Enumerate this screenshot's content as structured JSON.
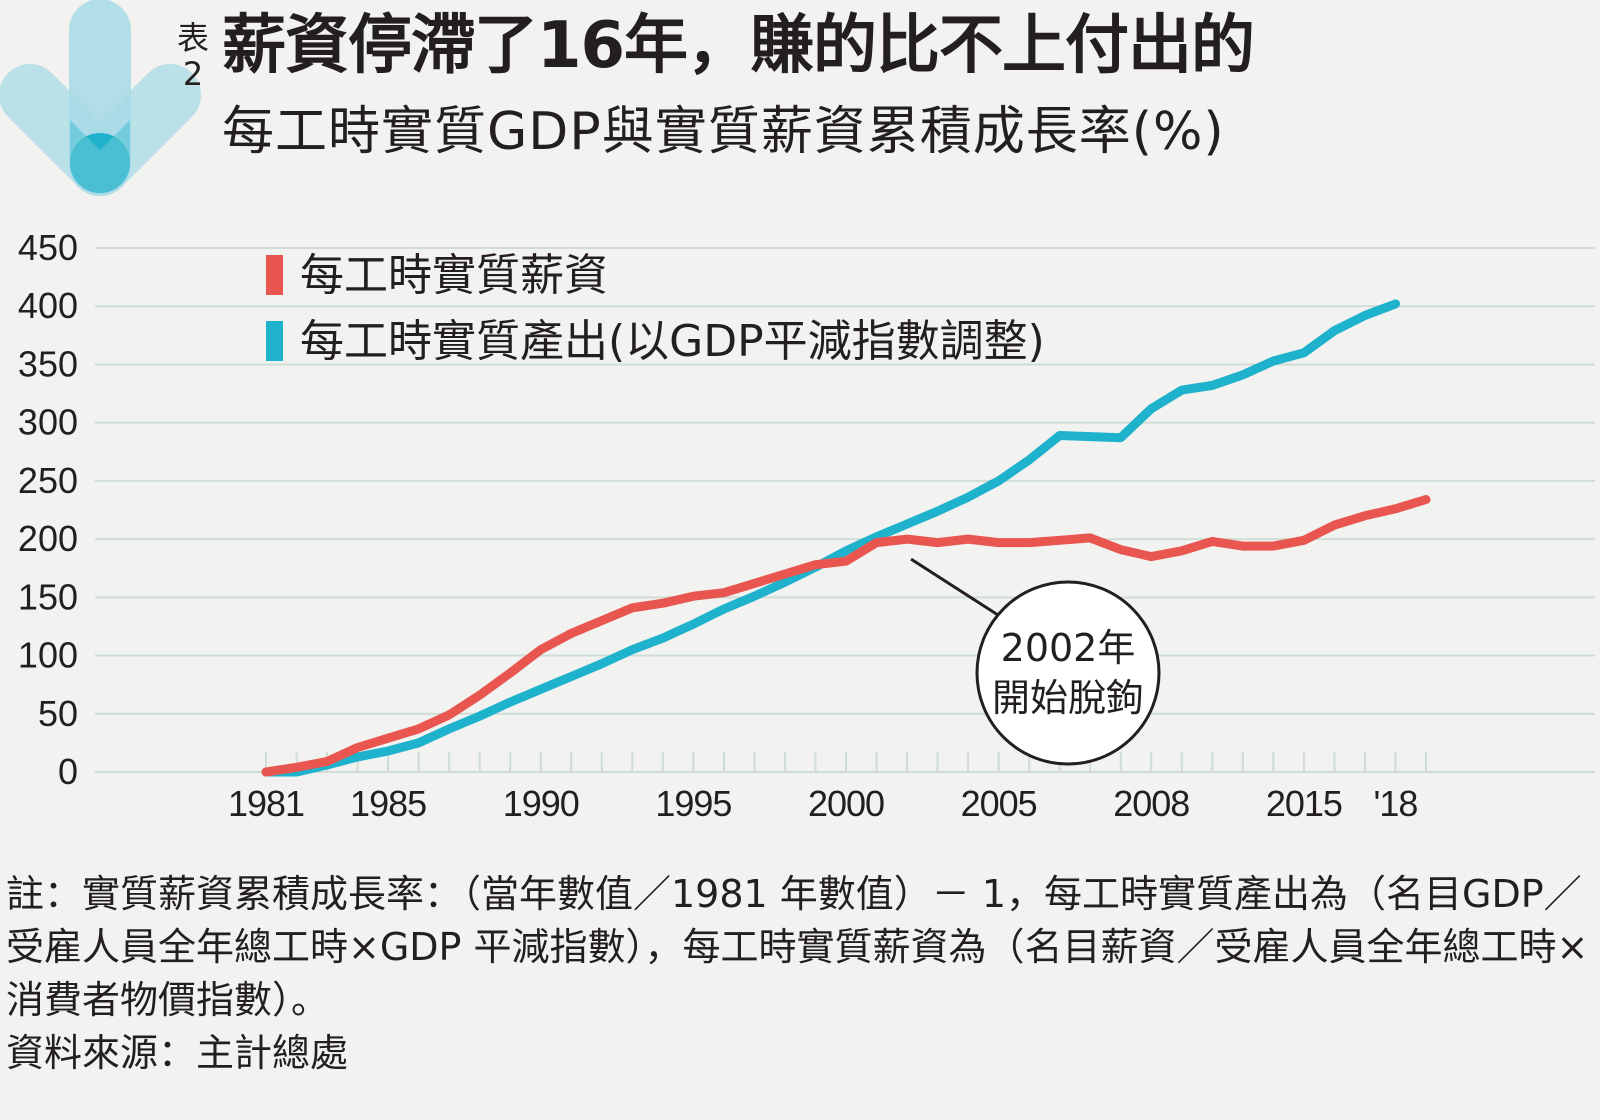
{
  "header": {
    "label": "表2",
    "title": "薪資停滯了16年，賺的比不上付出的",
    "subtitle": "每工時實質GDP與實質薪資累積成長率(%)"
  },
  "colors": {
    "wage": "#e8564f",
    "output": "#1fb2cc",
    "grid": "#cfddd6",
    "text": "#231f20",
    "background": "#f2f2f0",
    "logo_light": "#a8dbe6",
    "logo_dark": "#1fb2cc"
  },
  "icons": {
    "logo": "down-arrow-logo-icon"
  },
  "chart_data": {
    "type": "line",
    "x_tick_labels": [
      "1981",
      "1985",
      "1990",
      "1995",
      "2000",
      "2005",
      "2008",
      "2015",
      "'18"
    ],
    "ylim": [
      0,
      450
    ],
    "y_ticks": [
      0,
      50,
      100,
      150,
      200,
      250,
      300,
      350,
      400,
      450
    ],
    "grid": "horizontal",
    "legend_position": "top-left",
    "series": [
      {
        "name": "每工時實質薪資",
        "points": [
          [
            1981,
            0
          ],
          [
            1982,
            4
          ],
          [
            1983,
            9
          ],
          [
            1984,
            21
          ],
          [
            1985,
            29
          ],
          [
            1986,
            37
          ],
          [
            1987,
            49
          ],
          [
            1988,
            66
          ],
          [
            1989,
            85
          ],
          [
            1990,
            105
          ],
          [
            1991,
            119
          ],
          [
            1992,
            130
          ],
          [
            1993,
            141
          ],
          [
            1994,
            145
          ],
          [
            1995,
            151
          ],
          [
            1996,
            154
          ],
          [
            1997,
            162
          ],
          [
            1998,
            170
          ],
          [
            1999,
            178
          ],
          [
            2000,
            181
          ],
          [
            2001,
            197
          ],
          [
            2002,
            200
          ],
          [
            2003,
            197
          ],
          [
            2004,
            200
          ],
          [
            2005,
            197
          ],
          [
            2006,
            197
          ],
          [
            2007,
            199
          ],
          [
            2008,
            201
          ],
          [
            2009,
            191
          ],
          [
            2010,
            185
          ],
          [
            2011,
            190
          ],
          [
            2012,
            198
          ],
          [
            2013,
            194
          ],
          [
            2014,
            194
          ],
          [
            2015,
            199
          ],
          [
            2016,
            212
          ],
          [
            2017,
            220
          ],
          [
            2018,
            226
          ],
          [
            2019,
            234
          ]
        ]
      },
      {
        "name": "每工時實質產出(以GDP平減指數調整)",
        "points": [
          [
            1981,
            0
          ],
          [
            1982,
            0
          ],
          [
            1983,
            6
          ],
          [
            1984,
            13
          ],
          [
            1985,
            18
          ],
          [
            1986,
            25
          ],
          [
            1987,
            37
          ],
          [
            1988,
            48
          ],
          [
            1989,
            60
          ],
          [
            1990,
            71
          ],
          [
            1991,
            82
          ],
          [
            1992,
            93
          ],
          [
            1993,
            105
          ],
          [
            1994,
            115
          ],
          [
            1995,
            127
          ],
          [
            1996,
            140
          ],
          [
            1997,
            151
          ],
          [
            1998,
            163
          ],
          [
            1999,
            176
          ],
          [
            2000,
            190
          ],
          [
            2001,
            202
          ],
          [
            2002,
            213
          ],
          [
            2003,
            224
          ],
          [
            2004,
            236
          ],
          [
            2005,
            250
          ],
          [
            2006,
            268
          ],
          [
            2007,
            289
          ],
          [
            2008,
            288
          ],
          [
            2009,
            287
          ],
          [
            2010,
            312
          ],
          [
            2011,
            328
          ],
          [
            2012,
            332
          ],
          [
            2013,
            341
          ],
          [
            2014,
            353
          ],
          [
            2015,
            360
          ],
          [
            2016,
            379
          ],
          [
            2017,
            392
          ],
          [
            2018,
            402
          ]
        ]
      }
    ],
    "annotation": {
      "line1": "2002年",
      "line2": "開始脫鉤",
      "target": [
        2002,
        200
      ]
    }
  },
  "notes": {
    "note": "註：實質薪資累積成長率：（當年數值／1981 年數值）－ 1，每工時實質產出為（名目GDP／受雇人員全年總工時×GDP 平減指數），每工時實質薪資為（名目薪資／受雇人員全年總工時×消費者物價指數）。",
    "source": "資料來源：主計總處"
  }
}
